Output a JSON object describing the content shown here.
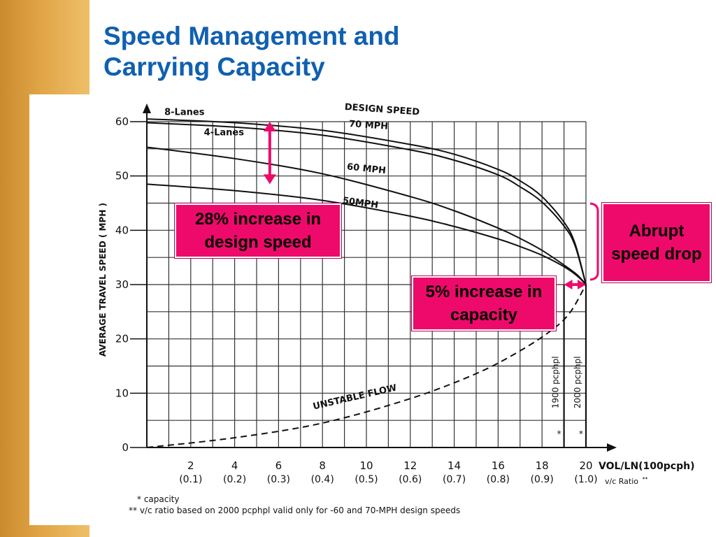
{
  "slide": {
    "title_line1": "Speed Management and",
    "title_line2": "Carrying Capacity",
    "accent_color": "#1060b0",
    "callout_color": "#ee0a6a",
    "callouts": {
      "speed_increase": "28% increase in design speed",
      "capacity_increase": "5% increase in capacity",
      "abrupt_drop": "Abrupt speed drop"
    }
  },
  "chart_data": {
    "type": "line",
    "title": "",
    "ylabel": "AVERAGE TRAVEL SPEED ( MPH )",
    "xlabel": "VOL/LN(100pcph)",
    "xlabel_secondary": "v/c Ratio",
    "xlabel_secondary_mark": "**",
    "xlim": [
      0,
      20
    ],
    "ylim": [
      0,
      60
    ],
    "grid": true,
    "x_ticks": [
      {
        "value": 2,
        "label": "2",
        "sublabel": "(0.1)"
      },
      {
        "value": 4,
        "label": "4",
        "sublabel": "(0.2)"
      },
      {
        "value": 6,
        "label": "6",
        "sublabel": "(0.3)"
      },
      {
        "value": 8,
        "label": "8",
        "sublabel": "(0.4)"
      },
      {
        "value": 10,
        "label": "10",
        "sublabel": "(0.5)"
      },
      {
        "value": 12,
        "label": "12",
        "sublabel": "(0.6)"
      },
      {
        "value": 14,
        "label": "14",
        "sublabel": "(0.7)"
      },
      {
        "value": 16,
        "label": "16",
        "sublabel": "(0.8)"
      },
      {
        "value": 18,
        "label": "18",
        "sublabel": "(0.9)"
      },
      {
        "value": 20,
        "label": "20",
        "sublabel": "(1.0)"
      }
    ],
    "y_ticks": [
      {
        "value": 0,
        "label": "0"
      },
      {
        "value": 10,
        "label": "10"
      },
      {
        "value": 20,
        "label": "20"
      },
      {
        "value": 30,
        "label": "30"
      },
      {
        "value": 40,
        "label": "40"
      },
      {
        "value": 50,
        "label": "50"
      },
      {
        "value": 60,
        "label": "60"
      }
    ],
    "series": [
      {
        "name": "8-Lanes",
        "style": "solid",
        "x": [
          0,
          4,
          8,
          12,
          14,
          16,
          17,
          18,
          19,
          19.5,
          20
        ],
        "y": [
          60.5,
          59.8,
          58.4,
          55.8,
          54,
          51.2,
          49.1,
          46.2,
          41.5,
          37.6,
          30
        ]
      },
      {
        "name": "4-Lanes",
        "style": "solid",
        "x": [
          0,
          4,
          8,
          12,
          14,
          16,
          17,
          18,
          19,
          19.5,
          20
        ],
        "y": [
          59.8,
          59,
          57.5,
          54.8,
          52.9,
          50.2,
          48,
          45.2,
          40.8,
          37.2,
          30
        ]
      },
      {
        "name": "60 MPH",
        "style": "solid",
        "x": [
          0,
          4,
          8,
          12,
          14,
          16,
          17,
          18,
          19,
          19.6,
          20
        ],
        "y": [
          55.3,
          53.2,
          50.4,
          46.2,
          43.6,
          40.4,
          38.5,
          36.3,
          33.6,
          31.8,
          30
        ]
      },
      {
        "name": "50MPH",
        "style": "solid",
        "x": [
          0,
          4,
          8,
          12,
          14,
          16,
          17,
          18,
          19,
          19.6,
          20
        ],
        "y": [
          48.5,
          47.3,
          45.5,
          42.6,
          40.7,
          38.4,
          37,
          35.4,
          33.3,
          31.6,
          30
        ]
      },
      {
        "name": "UNSTABLE FLOW",
        "style": "dashed",
        "x": [
          0,
          4,
          8,
          12,
          15,
          17,
          18.5,
          19.3,
          20
        ],
        "y": [
          0,
          1.8,
          4.5,
          9,
          13.6,
          17.8,
          21.8,
          25,
          30
        ]
      }
    ],
    "curve_labels": [
      {
        "text": "8-Lanes",
        "x": 0.8,
        "y": 61.2
      },
      {
        "text": "4-Lanes",
        "x": 2.6,
        "y": 57.5
      },
      {
        "text": "DESIGN SPEED",
        "x": 9.0,
        "y": 62.2
      },
      {
        "text": "70 MPH",
        "x": 9.2,
        "y": 59.1
      },
      {
        "text": "60 MPH",
        "x": 9.1,
        "y": 51.2
      },
      {
        "text": "50MPH",
        "x": 8.9,
        "y": 45.0
      },
      {
        "text": "UNSTABLE FLOW",
        "x": 7.6,
        "y": 7.0
      }
    ],
    "capacity_markers": [
      {
        "value": 19,
        "label": "1900 pcphpl",
        "mark": "*"
      },
      {
        "value": 20,
        "label": "2000 pcphpl",
        "mark": "*"
      }
    ],
    "annotations": {
      "speed_arrow": {
        "x": 5.6,
        "y_from": 48.5,
        "y_to": 60
      },
      "capacity_arrow": {
        "x_from": 19,
        "x_to": 20,
        "y": 30
      }
    },
    "footnotes": [
      "* capacity",
      "** v/c ratio based on 2000 pcphpl valid only for -60 and 70-MPH design speeds"
    ]
  }
}
